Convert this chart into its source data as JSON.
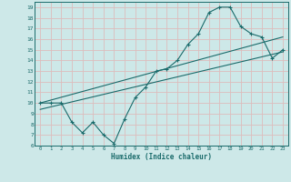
{
  "xlabel": "Humidex (Indice chaleur)",
  "bg_color": "#cde8e8",
  "grid_color": "#ddbcbc",
  "line_color": "#1a6b6b",
  "xlim": [
    -0.5,
    23.5
  ],
  "ylim": [
    6,
    19.5
  ],
  "xticks": [
    0,
    1,
    2,
    3,
    4,
    5,
    6,
    7,
    8,
    9,
    10,
    11,
    12,
    13,
    14,
    15,
    16,
    17,
    18,
    19,
    20,
    21,
    22,
    23
  ],
  "yticks": [
    6,
    7,
    8,
    9,
    10,
    11,
    12,
    13,
    14,
    15,
    16,
    17,
    18,
    19
  ],
  "curve1_x": [
    0,
    1,
    2,
    3,
    4,
    5,
    6,
    7,
    8,
    9,
    10,
    11,
    12,
    13,
    14,
    15,
    16,
    17,
    18,
    19,
    20,
    21,
    22,
    23
  ],
  "curve1_y": [
    10,
    10,
    10,
    8.2,
    7.2,
    8.2,
    7.0,
    6.2,
    8.5,
    10.5,
    11.5,
    13.0,
    13.2,
    14.0,
    15.5,
    16.5,
    18.5,
    19.0,
    19.0,
    17.2,
    16.5,
    16.2,
    14.2,
    15.0
  ],
  "line1_x": [
    0,
    23
  ],
  "line1_y": [
    10.0,
    16.2
  ],
  "line2_x": [
    0,
    23
  ],
  "line2_y": [
    9.4,
    14.8
  ],
  "marker": "+"
}
